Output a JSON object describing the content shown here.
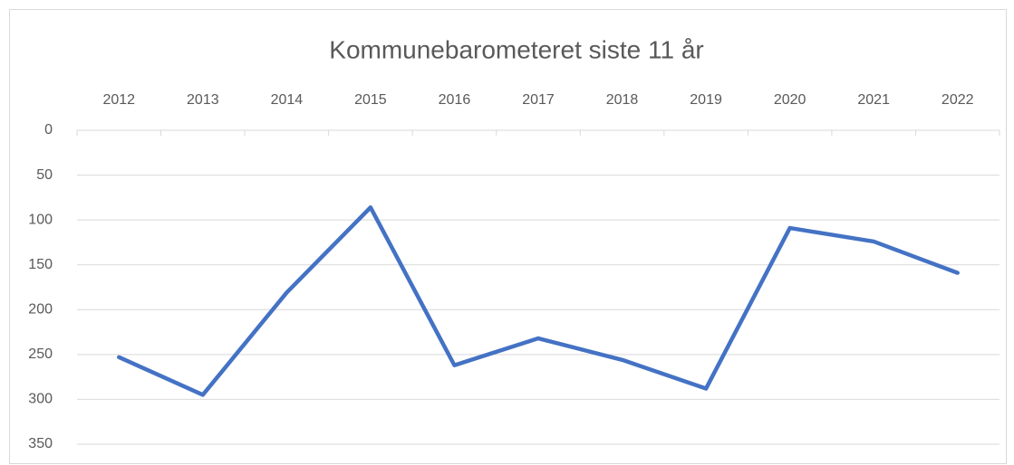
{
  "chart_data": {
    "type": "line",
    "title": "Kommunebarometeret siste 11 år",
    "categories": [
      "2012",
      "2013",
      "2014",
      "2015",
      "2016",
      "2017",
      "2018",
      "2019",
      "2020",
      "2021",
      "2022"
    ],
    "series": [
      {
        "name": "Kommunebarometeret",
        "color": "#4472c4",
        "values": [
          253,
          295,
          181,
          86,
          262,
          232,
          256,
          288,
          109,
          124,
          159
        ]
      }
    ],
    "ylim": [
      0,
      350
    ],
    "yticks": [
      0,
      50,
      100,
      150,
      200,
      250,
      300,
      350
    ],
    "y_inverted": true,
    "grid": true,
    "legend": false
  }
}
